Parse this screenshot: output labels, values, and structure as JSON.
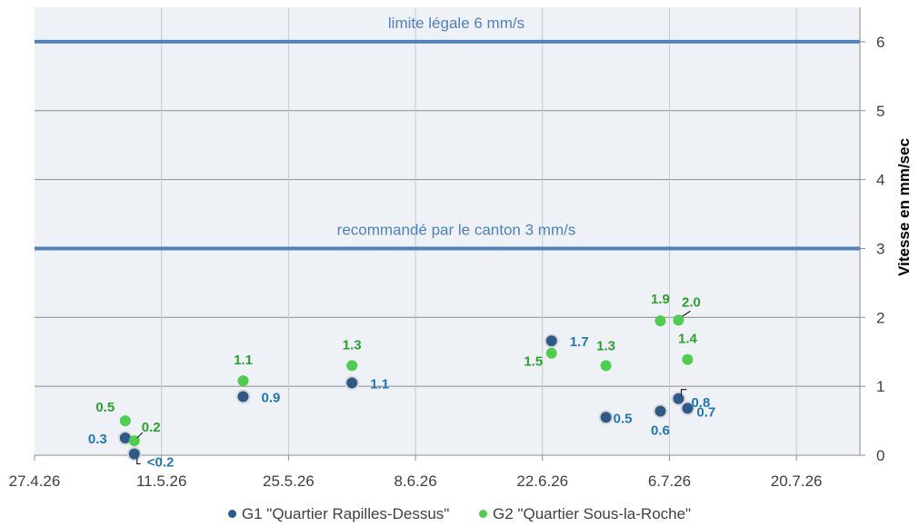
{
  "chart_data": {
    "type": "scatter",
    "title": "",
    "xlabel": "",
    "ylabel": "Vitesse en mm/sec",
    "x_ticks": [
      "27.4.26",
      "11.5.26",
      "25.5.26",
      "8.6.26",
      "22.6.26",
      "6.7.26",
      "20.7.26"
    ],
    "y_ticks": [
      "0",
      "1",
      "2",
      "3",
      "4",
      "5",
      "6"
    ],
    "ylim": [
      0,
      6.5
    ],
    "xlim": [
      "2026-04-27",
      "2026-07-27"
    ],
    "y_axis_side": "right",
    "grid": true,
    "legend_position": "bottom",
    "reference_lines": [
      {
        "y": 6,
        "label": "limite légale 6 mm/s",
        "color": "#4f81bd"
      },
      {
        "y": 3,
        "label": "recommandé par le canton 3 mm/s",
        "color": "#4f81bd"
      }
    ],
    "series": [
      {
        "name": "G1 \"Quartier Rapilles-Dessus\"",
        "color": "#2e5a88",
        "label_color": "#1f77b4",
        "points": [
          {
            "x": "2026-05-07",
            "y": 0.25,
            "label": "0.3"
          },
          {
            "x": "2026-05-08",
            "y": 0.02,
            "label": "<0.2"
          },
          {
            "x": "2026-05-20",
            "y": 0.85,
            "label": "0.9"
          },
          {
            "x": "2026-06-01",
            "y": 1.05,
            "label": "1.1"
          },
          {
            "x": "2026-06-23",
            "y": 1.66,
            "label": "1.7"
          },
          {
            "x": "2026-06-29",
            "y": 0.55,
            "label": "0.5"
          },
          {
            "x": "2026-07-05",
            "y": 0.64,
            "label": "0.6"
          },
          {
            "x": "2026-07-07",
            "y": 0.82,
            "label": "0.8"
          },
          {
            "x": "2026-07-08",
            "y": 0.68,
            "label": "0.7"
          }
        ]
      },
      {
        "name": "G2 \"Quartier Sous-la-Roche\"",
        "color": "#4ccf4c",
        "label_color": "#2ca02c",
        "points": [
          {
            "x": "2026-05-07",
            "y": 0.5,
            "label": "0.5"
          },
          {
            "x": "2026-05-08",
            "y": 0.21,
            "label": "0.2"
          },
          {
            "x": "2026-05-20",
            "y": 1.08,
            "label": "1.1"
          },
          {
            "x": "2026-06-01",
            "y": 1.3,
            "label": "1.3"
          },
          {
            "x": "2026-06-23",
            "y": 1.48,
            "label": "1.5"
          },
          {
            "x": "2026-06-29",
            "y": 1.3,
            "label": "1.3"
          },
          {
            "x": "2026-07-05",
            "y": 1.95,
            "label": "1.9"
          },
          {
            "x": "2026-07-07",
            "y": 1.96,
            "label": "2.0"
          },
          {
            "x": "2026-07-08",
            "y": 1.39,
            "label": "1.4"
          }
        ]
      }
    ]
  }
}
